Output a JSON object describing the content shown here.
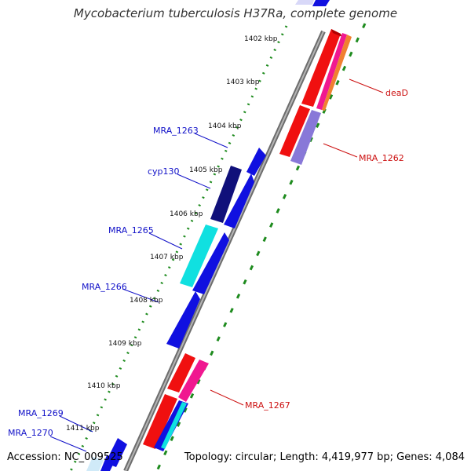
{
  "title": "Mycobacterium tuberculosis H37Ra, complete genome",
  "accession": "Accession: NC_009525",
  "topology": "Topology: circular; Length: 4,419,977 bp; Genes: 4,084",
  "colors": {
    "backbone": "#8a8a8a",
    "tick_dots": "#1e8b1e",
    "label_blue": "#1010c8",
    "label_red": "#cc1010",
    "gene_blue": "#1010e0",
    "gene_navy": "#10107a",
    "gene_cyan": "#10e0e0",
    "gene_red": "#f01010",
    "gene_pink": "#f01890",
    "gene_orange": "#f08030",
    "gene_lavender": "#8878d8"
  },
  "ticks": [
    "1402 kbp",
    "1403 kbp",
    "1404 kbp",
    "1405 kbp",
    "1406 kbp",
    "1407 kbp",
    "1408 kbp",
    "1409 kbp",
    "1410 kbp",
    "1411 kbp"
  ],
  "gene_labels": [
    {
      "text": "deaD",
      "color": "red"
    },
    {
      "text": "MRA_1262",
      "color": "red"
    },
    {
      "text": "MRA_1263",
      "color": "blue"
    },
    {
      "text": "cyp130",
      "color": "blue"
    },
    {
      "text": "MRA_1265",
      "color": "blue"
    },
    {
      "text": "MRA_1266",
      "color": "blue"
    },
    {
      "text": "MRA_1267",
      "color": "red"
    },
    {
      "text": "MRA_1269",
      "color": "blue"
    },
    {
      "text": "MRA_1270",
      "color": "blue"
    }
  ]
}
